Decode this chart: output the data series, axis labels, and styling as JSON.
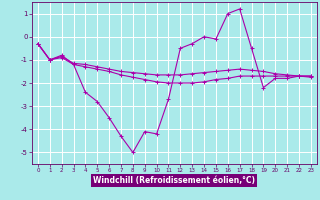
{
  "xlabel": "Windchill (Refroidissement éolien,°C)",
  "bg_color": "#aaeaea",
  "grid_color": "#ffffff",
  "line_color": "#aa00aa",
  "xlabel_bg": "#7700aa",
  "x": [
    0,
    1,
    2,
    3,
    4,
    5,
    6,
    7,
    8,
    9,
    10,
    11,
    12,
    13,
    14,
    15,
    16,
    17,
    18,
    19,
    20,
    21,
    22,
    23
  ],
  "y_main": [
    -0.3,
    -1.0,
    -0.8,
    -1.2,
    -2.4,
    -2.8,
    -3.5,
    -4.3,
    -5.0,
    -4.1,
    -4.2,
    -2.7,
    -0.5,
    -0.3,
    0.0,
    -0.1,
    1.0,
    1.2,
    -0.5,
    -2.2,
    -1.8,
    -1.8,
    -1.7,
    -1.7
  ],
  "y_line2": [
    -0.3,
    -1.0,
    -0.85,
    -1.15,
    -1.2,
    -1.3,
    -1.4,
    -1.5,
    -1.55,
    -1.6,
    -1.65,
    -1.65,
    -1.65,
    -1.6,
    -1.55,
    -1.5,
    -1.45,
    -1.4,
    -1.45,
    -1.5,
    -1.6,
    -1.65,
    -1.7,
    -1.75
  ],
  "y_line3": [
    -0.3,
    -1.0,
    -0.9,
    -1.2,
    -1.3,
    -1.4,
    -1.5,
    -1.65,
    -1.75,
    -1.85,
    -1.95,
    -2.0,
    -2.0,
    -2.0,
    -1.95,
    -1.85,
    -1.8,
    -1.7,
    -1.7,
    -1.7,
    -1.7,
    -1.7,
    -1.7,
    -1.7
  ],
  "ylim": [
    -5.5,
    1.5
  ],
  "xlim": [
    -0.5,
    23.5
  ],
  "yticks": [
    -5,
    -4,
    -3,
    -2,
    -1,
    0,
    1
  ],
  "xticks": [
    0,
    1,
    2,
    3,
    4,
    5,
    6,
    7,
    8,
    9,
    10,
    11,
    12,
    13,
    14,
    15,
    16,
    17,
    18,
    19,
    20,
    21,
    22,
    23
  ]
}
